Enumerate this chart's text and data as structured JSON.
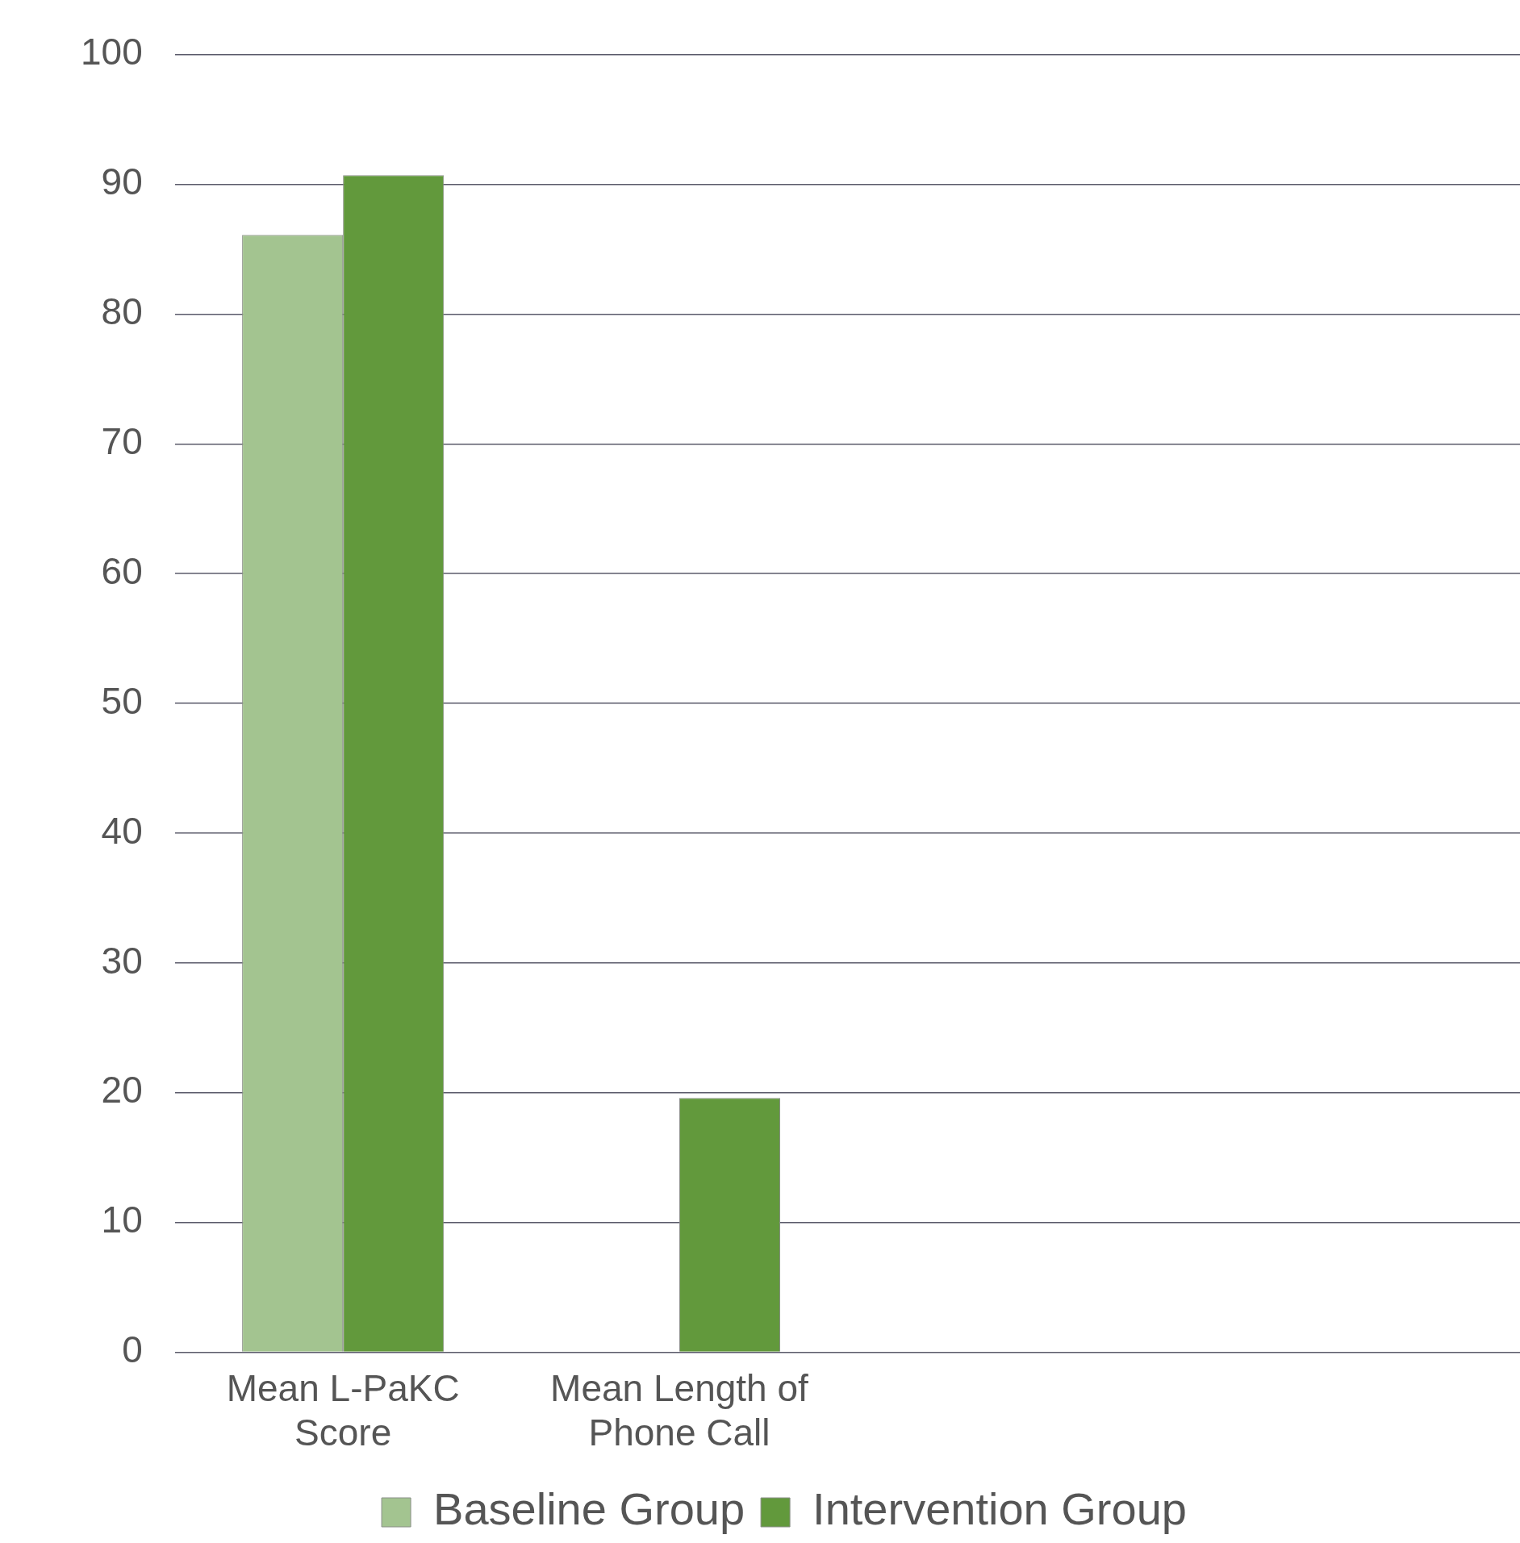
{
  "chart_data": {
    "type": "bar",
    "categories": [
      "Mean L-PaKC Score",
      "Mean Length of Phone Call",
      null,
      null
    ],
    "series": [
      {
        "name": "Baseline Group",
        "color": "#a3c490",
        "values": [
          86.1,
          null,
          null,
          null
        ]
      },
      {
        "name": "Intervention Group",
        "color": "#62993c",
        "values": [
          90.7,
          19.6,
          null,
          null
        ]
      }
    ],
    "ylim": [
      0,
      100
    ],
    "yticks": [
      0,
      10,
      20,
      30,
      40,
      50,
      60,
      70,
      80,
      90,
      100
    ],
    "grid": "y",
    "legend": "bottom"
  }
}
